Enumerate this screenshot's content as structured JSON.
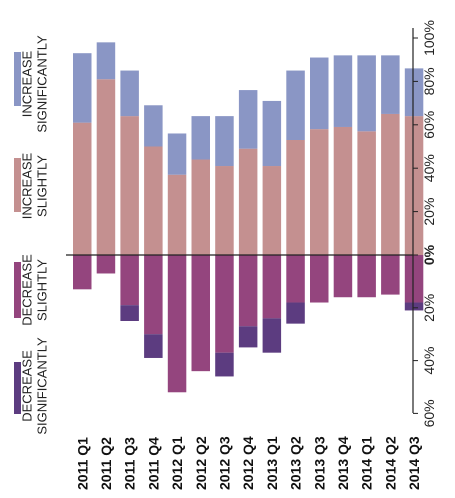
{
  "chart_data": {
    "type": "bar",
    "stacked": true,
    "diverging": true,
    "categories": [
      "2011 Q1",
      "2011 Q2",
      "2011 Q3",
      "2011 Q4",
      "2012 Q1",
      "2012 Q2",
      "2012 Q3",
      "2012 Q4",
      "2013 Q1",
      "2013 Q2",
      "2013 Q3",
      "2013 Q4",
      "2014 Q1",
      "2014 Q2",
      "2014 Q3"
    ],
    "series": [
      {
        "name": "INCREASE SLIGHTLY",
        "color": "#c49090",
        "direction": "up",
        "values": [
          61,
          81,
          64,
          50,
          37,
          44,
          41,
          49,
          41,
          53,
          58,
          59,
          57,
          65,
          64
        ]
      },
      {
        "name": "INCREASE SIGNIFICANTLY",
        "color": "#8a96c5",
        "direction": "up",
        "values": [
          32,
          17,
          21,
          19,
          19,
          20,
          23,
          27,
          30,
          32,
          33,
          33,
          35,
          27,
          22
        ]
      },
      {
        "name": "DECREASE SLIGHTLY",
        "color": "#94457e",
        "direction": "down",
        "values": [
          13,
          7,
          19,
          30,
          52,
          44,
          37,
          27,
          24,
          18,
          18,
          16,
          16,
          15,
          18
        ]
      },
      {
        "name": "DECREASE SIGNIFICANTLY",
        "color": "#5c3c80",
        "direction": "down",
        "values": [
          0,
          0,
          6,
          9,
          0,
          0,
          9,
          8,
          13,
          8,
          0,
          0,
          0,
          0,
          3
        ]
      }
    ],
    "y_up_ticks": [
      "0%",
      "20%",
      "40%",
      "60%",
      "80%",
      "100%"
    ],
    "y_down_ticks": [
      "20%",
      "40%",
      "60%"
    ],
    "ylim_up": [
      0,
      100
    ],
    "ylim_down": [
      0,
      60
    ],
    "legend_placement": "left",
    "grid": false
  }
}
